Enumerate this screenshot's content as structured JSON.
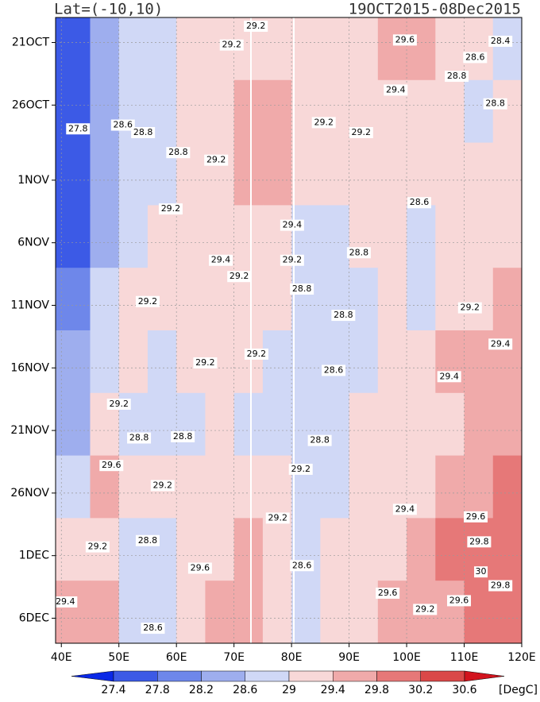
{
  "chart_data": {
    "type": "heatmap",
    "title_left": "Lat=(-10,10)",
    "title_right": "19OCT2015-08Dec2015",
    "x_bins": [
      39,
      45,
      50,
      55,
      60,
      65,
      70,
      75,
      80,
      85,
      90,
      95,
      100,
      105,
      110,
      115,
      120
    ],
    "y_bins": [
      0,
      5,
      10,
      15,
      20,
      25,
      30,
      35,
      40,
      45,
      50
    ],
    "values": [
      [
        27.4,
        28.2,
        28.6,
        28.8,
        29.2,
        29.3,
        29.2,
        29.3,
        29.2,
        29.2,
        29.1,
        29.4,
        29.5,
        29.3,
        29.1,
        28.8
      ],
      [
        27.4,
        28.2,
        28.7,
        28.8,
        29.0,
        29.2,
        29.4,
        29.5,
        29.2,
        29.1,
        29.0,
        29.2,
        29.2,
        29.0,
        28.8,
        29.0
      ],
      [
        27.5,
        28.4,
        28.8,
        28.9,
        29.0,
        29.2,
        29.5,
        29.4,
        29.1,
        29.0,
        29.0,
        29.1,
        29.0,
        29.0,
        29.1,
        29.2
      ],
      [
        27.6,
        28.5,
        28.9,
        29.0,
        29.1,
        29.3,
        29.1,
        29.3,
        28.9,
        28.8,
        29.0,
        29.0,
        28.6,
        29.0,
        29.2,
        29.3
      ],
      [
        27.8,
        28.6,
        29.0,
        29.1,
        29.0,
        29.1,
        29.0,
        29.1,
        28.8,
        28.7,
        28.9,
        29.0,
        28.6,
        29.1,
        29.3,
        29.4
      ],
      [
        28.2,
        28.8,
        29.0,
        28.9,
        29.1,
        29.2,
        29.0,
        28.9,
        28.6,
        28.6,
        28.9,
        29.1,
        29.1,
        29.4,
        29.6,
        29.5
      ],
      [
        28.4,
        29.0,
        28.8,
        28.6,
        28.8,
        29.0,
        28.9,
        28.8,
        28.6,
        28.7,
        29.0,
        29.2,
        29.2,
        29.3,
        29.5,
        29.4
      ],
      [
        28.8,
        29.6,
        29.1,
        29.0,
        29.1,
        29.2,
        29.3,
        29.0,
        28.9,
        28.9,
        29.0,
        29.3,
        29.3,
        29.5,
        29.7,
        29.8
      ],
      [
        29.0,
        29.3,
        28.8,
        28.7,
        29.0,
        29.3,
        29.4,
        29.1,
        28.8,
        29.0,
        29.1,
        29.3,
        29.5,
        29.8,
        30.0,
        29.9
      ],
      [
        29.5,
        29.6,
        28.8,
        28.6,
        29.1,
        29.4,
        29.6,
        29.2,
        28.9,
        29.1,
        29.2,
        29.4,
        29.5,
        29.7,
        29.9,
        29.8
      ]
    ],
    "xlim": [
      39,
      120
    ],
    "ylim": [
      0,
      50
    ],
    "xticks": [
      {
        "value": 40,
        "label": "40E"
      },
      {
        "value": 50,
        "label": "50E"
      },
      {
        "value": 60,
        "label": "60E"
      },
      {
        "value": 70,
        "label": "70E"
      },
      {
        "value": 80,
        "label": "80E"
      },
      {
        "value": 90,
        "label": "90E"
      },
      {
        "value": 100,
        "label": "100E"
      },
      {
        "value": 110,
        "label": "110E"
      },
      {
        "value": 120,
        "label": "120E"
      }
    ],
    "yticks": [
      {
        "value": 2,
        "label": "21OCT"
      },
      {
        "value": 7,
        "label": "26OCT"
      },
      {
        "value": 13,
        "label": "1NOV"
      },
      {
        "value": 18,
        "label": "6NOV"
      },
      {
        "value": 23,
        "label": "11NOV"
      },
      {
        "value": 28,
        "label": "16NOV"
      },
      {
        "value": 33,
        "label": "21NOV"
      },
      {
        "value": 38,
        "label": "26NOV"
      },
      {
        "value": 43,
        "label": "1DEC"
      },
      {
        "value": 48,
        "label": "6DEC"
      }
    ],
    "grid": true,
    "levels": [
      27.4,
      27.8,
      28.2,
      28.6,
      29,
      29.4,
      29.8,
      30.2,
      30.6
    ],
    "colors": [
      "#0a28e6",
      "#3c5ae6",
      "#6e87ea",
      "#9eaeee",
      "#d0d8f6",
      "#f8d8d8",
      "#f0aaaa",
      "#e67878",
      "#da4848",
      "#d2141e"
    ],
    "unit": "[DegC]",
    "contour_labels": [
      {
        "x": 73.8,
        "y": 0.7,
        "value": 29.2
      },
      {
        "x": 69.6,
        "y": 2.2,
        "value": 29.2
      },
      {
        "x": 99.7,
        "y": 1.8,
        "value": 29.6
      },
      {
        "x": 116.3,
        "y": 1.9,
        "value": 28.4
      },
      {
        "x": 111.9,
        "y": 3.2,
        "value": 28.6
      },
      {
        "x": 108.7,
        "y": 4.7,
        "value": 28.8
      },
      {
        "x": 98.1,
        "y": 5.8,
        "value": 29.4
      },
      {
        "x": 115.4,
        "y": 6.9,
        "value": 28.8
      },
      {
        "x": 85.6,
        "y": 8.4,
        "value": 29.2
      },
      {
        "x": 92.1,
        "y": 9.2,
        "value": 29.2
      },
      {
        "x": 42.9,
        "y": 8.9,
        "value": 27.8
      },
      {
        "x": 50.7,
        "y": 8.6,
        "value": 28.6
      },
      {
        "x": 54.2,
        "y": 9.2,
        "value": 28.8
      },
      {
        "x": 60.3,
        "y": 10.8,
        "value": 28.8
      },
      {
        "x": 66.9,
        "y": 11.4,
        "value": 29.2
      },
      {
        "x": 59.0,
        "y": 15.3,
        "value": 29.2
      },
      {
        "x": 102.2,
        "y": 14.8,
        "value": 28.6
      },
      {
        "x": 80.1,
        "y": 16.6,
        "value": 29.4
      },
      {
        "x": 67.7,
        "y": 19.4,
        "value": 29.4
      },
      {
        "x": 80.1,
        "y": 19.4,
        "value": 29.2
      },
      {
        "x": 91.7,
        "y": 18.8,
        "value": 28.8
      },
      {
        "x": 70.9,
        "y": 20.7,
        "value": 29.2
      },
      {
        "x": 81.8,
        "y": 21.7,
        "value": 28.8
      },
      {
        "x": 55.0,
        "y": 22.7,
        "value": 29.2
      },
      {
        "x": 89.0,
        "y": 23.8,
        "value": 28.8
      },
      {
        "x": 111.0,
        "y": 23.2,
        "value": 29.2
      },
      {
        "x": 73.9,
        "y": 26.9,
        "value": 29.2
      },
      {
        "x": 87.3,
        "y": 28.2,
        "value": 28.6
      },
      {
        "x": 65.0,
        "y": 27.6,
        "value": 29.2
      },
      {
        "x": 116.3,
        "y": 26.1,
        "value": 29.4
      },
      {
        "x": 107.4,
        "y": 28.7,
        "value": 29.4
      },
      {
        "x": 50.0,
        "y": 30.9,
        "value": 29.2
      },
      {
        "x": 53.5,
        "y": 33.6,
        "value": 28.8
      },
      {
        "x": 61.1,
        "y": 33.5,
        "value": 28.8
      },
      {
        "x": 84.9,
        "y": 33.8,
        "value": 28.8
      },
      {
        "x": 48.7,
        "y": 35.8,
        "value": 29.6
      },
      {
        "x": 57.6,
        "y": 37.4,
        "value": 29.2
      },
      {
        "x": 81.6,
        "y": 36.1,
        "value": 29.2
      },
      {
        "x": 99.7,
        "y": 39.3,
        "value": 29.4
      },
      {
        "x": 77.6,
        "y": 40.0,
        "value": 29.2
      },
      {
        "x": 112.0,
        "y": 39.9,
        "value": 29.6
      },
      {
        "x": 55.0,
        "y": 41.8,
        "value": 28.8
      },
      {
        "x": 46.3,
        "y": 42.3,
        "value": 29.2
      },
      {
        "x": 112.6,
        "y": 41.9,
        "value": 29.8
      },
      {
        "x": 81.8,
        "y": 43.8,
        "value": 28.6
      },
      {
        "x": 64.1,
        "y": 44.0,
        "value": 29.6
      },
      {
        "x": 112.9,
        "y": 44.3,
        "value": 30
      },
      {
        "x": 116.3,
        "y": 45.4,
        "value": 29.8
      },
      {
        "x": 96.7,
        "y": 46.0,
        "value": 29.6
      },
      {
        "x": 40.7,
        "y": 46.7,
        "value": 29.4
      },
      {
        "x": 55.9,
        "y": 48.8,
        "value": 28.6
      },
      {
        "x": 109.1,
        "y": 46.6,
        "value": 29.6
      },
      {
        "x": 103.2,
        "y": 47.3,
        "value": 29.2
      }
    ]
  }
}
